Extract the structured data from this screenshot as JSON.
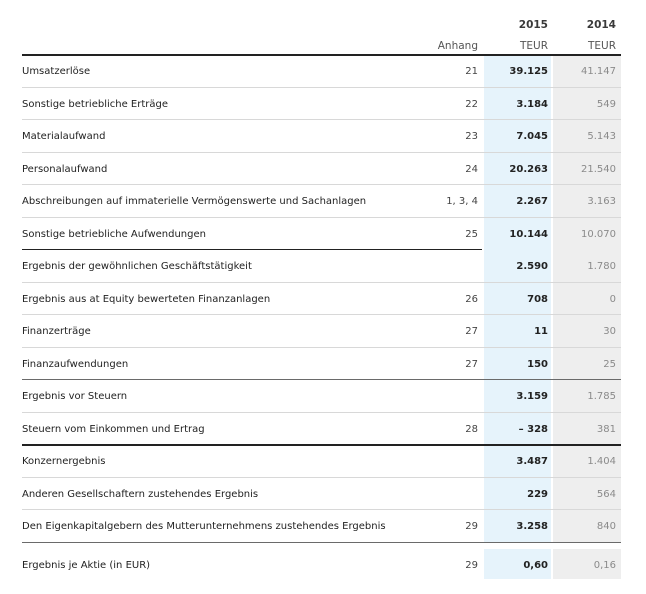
{
  "header": {
    "note_label": "Anhang",
    "year_current": "2015",
    "year_prior": "2014",
    "unit_current": "TEUR",
    "unit_prior": "TEUR"
  },
  "rows": [
    {
      "label": "Umsatzerlöse",
      "note": "21",
      "current": "39.125",
      "prior": "41.147"
    },
    {
      "label": "Sonstige betriebliche Erträge",
      "note": "22",
      "current": "3.184",
      "prior": "549"
    },
    {
      "label": "Materialaufwand",
      "note": "23",
      "current": "7.045",
      "prior": "5.143"
    },
    {
      "label": "Personalaufwand",
      "note": "24",
      "current": "20.263",
      "prior": "21.540"
    },
    {
      "label": "Abschreibungen auf immaterielle Vermögenswerte und Sachanlagen",
      "note": "1, 3, 4",
      "current": "2.267",
      "prior": "3.163"
    },
    {
      "label": "Sonstige betriebliche Aufwendungen",
      "note": "25",
      "current": "10.144",
      "prior": "10.070"
    },
    {
      "label": "Ergebnis der gewöhnlichen Geschäftstätigkeit",
      "note": "",
      "current": "2.590",
      "prior": "1.780"
    },
    {
      "label": "Ergebnis aus at Equity bewerteten Finanzanlagen",
      "note": "26",
      "current": "708",
      "prior": "0"
    },
    {
      "label": "Finanzerträge",
      "note": "27",
      "current": "11",
      "prior": "30"
    },
    {
      "label": "Finanzaufwendungen",
      "note": "27",
      "current": "150",
      "prior": "25"
    },
    {
      "label": "Ergebnis vor Steuern",
      "note": "",
      "current": "3.159",
      "prior": "1.785"
    },
    {
      "label": "Steuern vom Einkommen und Ertrag",
      "note": "28",
      "current": "– 328",
      "prior": "381"
    },
    {
      "label": "Konzernergebnis",
      "note": "",
      "current": "3.487",
      "prior": "1.404"
    },
    {
      "label": "Anderen Gesellschaftern zustehendes Ergebnis",
      "note": "",
      "current": "229",
      "prior": "564"
    },
    {
      "label": "Den Eigenkapitalgebern des Mutterunternehmens zustehendes Ergebnis",
      "note": "29",
      "current": "3.258",
      "prior": "840"
    }
  ],
  "eps": {
    "label": "Ergebnis je Aktie (in EUR)",
    "note": "29",
    "current": "0,60",
    "prior": "0,16"
  }
}
